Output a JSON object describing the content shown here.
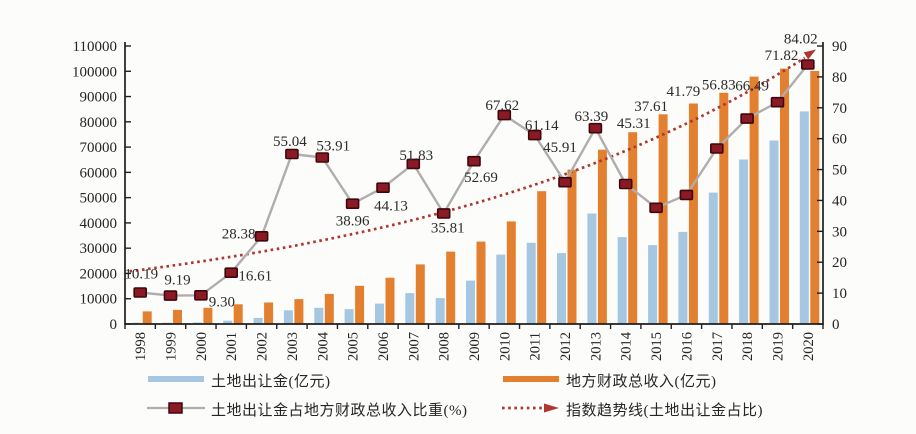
{
  "chart_data": {
    "type": "combo_bar_line",
    "title": "",
    "categories": [
      "1998",
      "1999",
      "2000",
      "2001",
      "2002",
      "2003",
      "2004",
      "2005",
      "2006",
      "2007",
      "2008",
      "2009",
      "2010",
      "2011",
      "2012",
      "2013",
      "2014",
      "2015",
      "2016",
      "2017",
      "2018",
      "2019",
      "2020"
    ],
    "series": [
      {
        "name": "土地出让金(亿元)",
        "type": "bar",
        "axis": "left",
        "color": "#A6C7E2",
        "values": [
          508,
          514,
          596,
          1296,
          2417,
          5421,
          6412,
          5883,
          8078,
          12218,
          10260,
          17178,
          27462,
          32127,
          28041,
          43719,
          34380,
          31210,
          36457,
          51982,
          65097,
          72593,
          84124
        ]
      },
      {
        "name": "地方财政总收入(亿元)",
        "type": "bar",
        "axis": "left",
        "color": "#E2802F",
        "values": [
          4984,
          5595,
          6406,
          7803,
          8515,
          9850,
          11893,
          15101,
          18304,
          23573,
          28650,
          32603,
          40613,
          52547,
          61078,
          68969,
          75877,
          82983,
          87239,
          91469,
          97905,
          101077,
          100124
        ]
      },
      {
        "name": "土地出让金占地方财政总收入比重(%)",
        "type": "line",
        "axis": "right",
        "line_color": "#AFAEAC",
        "marker_color": "#8A1B24",
        "marker_edge_color": "#3E070C",
        "values": [
          10.19,
          9.19,
          9.3,
          16.61,
          28.38,
          55.04,
          53.91,
          38.96,
          44.13,
          51.83,
          35.81,
          52.69,
          67.62,
          61.14,
          45.91,
          63.39,
          45.31,
          37.61,
          41.79,
          56.83,
          66.49,
          71.82,
          84.02
        ],
        "point_labels": [
          "10.19",
          "9.19",
          "9.30",
          "16.61",
          "28.38",
          "55.04",
          "53.91",
          "38.96",
          "44.13",
          "51.83",
          "35.81",
          "52.69",
          "67.62",
          "61.14",
          "45.91",
          "63.39",
          "45.31",
          "37.61",
          "41.79",
          "56.83",
          "66.49",
          "71.82",
          "84.02"
        ],
        "label_offsets": [
          [
            1,
            -19
          ],
          [
            7,
            -16
          ],
          [
            21,
            6
          ],
          [
            24,
            3
          ],
          [
            -23,
            -3
          ],
          [
            -2,
            -13
          ],
          [
            11,
            -12
          ],
          [
            0,
            17
          ],
          [
            8,
            18
          ],
          [
            3,
            -9
          ],
          [
            4,
            14
          ],
          [
            7,
            16
          ],
          [
            -2,
            -10
          ],
          [
            7,
            -10
          ],
          [
            -5,
            -35
          ],
          [
            -4,
            -12
          ],
          [
            8,
            -61
          ],
          [
            -5,
            -102
          ],
          [
            -3,
            -104
          ],
          [
            2,
            -64
          ],
          [
            5,
            -33
          ],
          [
            4,
            -47
          ],
          [
            -7,
            -26
          ]
        ]
      },
      {
        "name": "指数趋势线(土地出让金占比)",
        "type": "exponential_trend",
        "axis": "right",
        "color": "#AE3730",
        "start_value": 17.5,
        "growth_rate": 0.0728,
        "end_value": 86.8
      }
    ],
    "left_axis": {
      "min": 0,
      "max": 110000,
      "step": 10000,
      "ticks": [
        "0",
        "10000",
        "20000",
        "30000",
        "40000",
        "50000",
        "60000",
        "70000",
        "80000",
        "90000",
        "100000",
        "110000"
      ]
    },
    "right_axis": {
      "min": 0,
      "max": 90,
      "step": 10,
      "ticks": [
        "0",
        "10",
        "20",
        "30",
        "40",
        "50",
        "60",
        "70",
        "80",
        "90"
      ]
    },
    "legend": [
      {
        "label": "土地出让金(亿元)",
        "swatch": "thick-line",
        "color": "#A6C7E2"
      },
      {
        "label": "地方财政总收入(亿元)",
        "swatch": "thick-line",
        "color": "#E2802F"
      },
      {
        "label": "土地出让金占地方财政总收入比重(%)",
        "swatch": "line-square-marker",
        "color": "#AFAEAC",
        "marker_color": "#8A1B24"
      },
      {
        "label": "指数趋势线(土地出让金占比)",
        "swatch": "dotted-arrow",
        "color": "#AE3730"
      }
    ],
    "text_color": "#242424",
    "axis_color": "#1F1F1F",
    "grid": false,
    "legend_position": "bottom"
  }
}
